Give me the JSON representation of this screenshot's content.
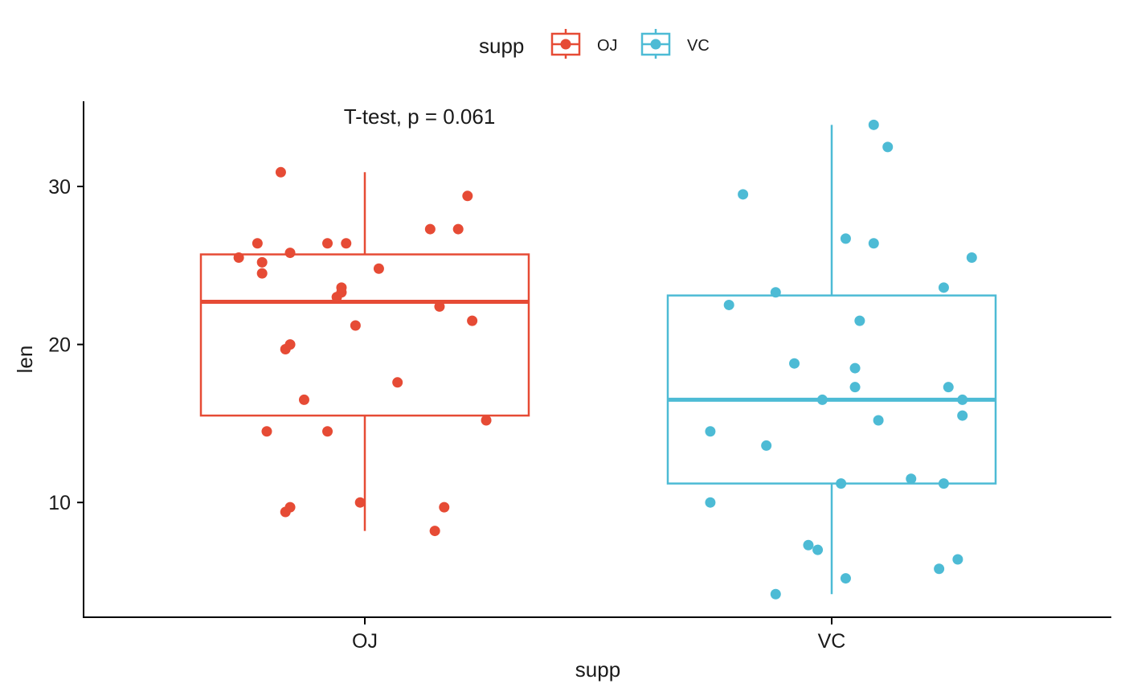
{
  "chart_data": {
    "type": "boxplot",
    "xlabel": "supp",
    "ylabel": "len",
    "categories": [
      "OJ",
      "VC"
    ],
    "ylim": [
      3,
      35
    ],
    "yticks": [
      10,
      20,
      30
    ],
    "legend": {
      "title": "supp",
      "position": "top",
      "entries": [
        "OJ",
        "VC"
      ]
    },
    "annotation": "T-test, p = 0.061",
    "grid": false,
    "series": [
      {
        "name": "OJ",
        "color": "#E64B35",
        "box": {
          "q1": 15.5,
          "median": 22.7,
          "q3": 25.7,
          "whisker_low": 8.2,
          "whisker_high": 30.9
        },
        "points": [
          {
            "x": 0.79,
            "y": 14.5
          },
          {
            "x": 0.92,
            "y": 14.5
          },
          {
            "x": 0.87,
            "y": 16.5
          },
          {
            "x": 0.83,
            "y": 19.7
          },
          {
            "x": 0.84,
            "y": 20.0
          },
          {
            "x": 1.07,
            "y": 17.6
          },
          {
            "x": 0.98,
            "y": 21.2
          },
          {
            "x": 1.16,
            "y": 22.4
          },
          {
            "x": 1.23,
            "y": 21.5
          },
          {
            "x": 0.94,
            "y": 23.0
          },
          {
            "x": 0.95,
            "y": 23.3
          },
          {
            "x": 0.95,
            "y": 23.6
          },
          {
            "x": 0.78,
            "y": 24.5
          },
          {
            "x": 0.78,
            "y": 25.2
          },
          {
            "x": 0.73,
            "y": 25.5
          },
          {
            "x": 0.84,
            "y": 25.8
          },
          {
            "x": 1.03,
            "y": 24.8
          },
          {
            "x": 0.77,
            "y": 26.4
          },
          {
            "x": 0.92,
            "y": 26.4
          },
          {
            "x": 0.96,
            "y": 26.4
          },
          {
            "x": 1.14,
            "y": 27.3
          },
          {
            "x": 1.2,
            "y": 27.3
          },
          {
            "x": 1.22,
            "y": 29.4
          },
          {
            "x": 0.82,
            "y": 30.9
          },
          {
            "x": 0.83,
            "y": 9.4
          },
          {
            "x": 0.84,
            "y": 9.7
          },
          {
            "x": 0.99,
            "y": 10.0
          },
          {
            "x": 1.17,
            "y": 9.7
          },
          {
            "x": 1.15,
            "y": 8.2
          },
          {
            "x": 1.26,
            "y": 15.2
          }
        ]
      },
      {
        "name": "VC",
        "color": "#4DBBD5",
        "box": {
          "q1": 11.2,
          "median": 16.5,
          "q3": 23.1,
          "whisker_low": 4.2,
          "whisker_high": 33.9
        },
        "points": [
          {
            "x": 2.09,
            "y": 33.9
          },
          {
            "x": 2.12,
            "y": 32.5
          },
          {
            "x": 1.81,
            "y": 29.5
          },
          {
            "x": 2.03,
            "y": 26.7
          },
          {
            "x": 2.09,
            "y": 26.4
          },
          {
            "x": 2.3,
            "y": 25.5
          },
          {
            "x": 1.88,
            "y": 23.3
          },
          {
            "x": 2.24,
            "y": 23.6
          },
          {
            "x": 1.78,
            "y": 22.5
          },
          {
            "x": 2.06,
            "y": 21.5
          },
          {
            "x": 1.92,
            "y": 18.8
          },
          {
            "x": 2.05,
            "y": 18.5
          },
          {
            "x": 2.05,
            "y": 17.3
          },
          {
            "x": 2.25,
            "y": 17.3
          },
          {
            "x": 1.98,
            "y": 16.5
          },
          {
            "x": 2.28,
            "y": 16.5
          },
          {
            "x": 2.1,
            "y": 15.2
          },
          {
            "x": 2.28,
            "y": 15.5
          },
          {
            "x": 1.74,
            "y": 14.5
          },
          {
            "x": 1.86,
            "y": 13.6
          },
          {
            "x": 2.17,
            "y": 11.5
          },
          {
            "x": 2.02,
            "y": 11.2
          },
          {
            "x": 2.24,
            "y": 11.2
          },
          {
            "x": 1.74,
            "y": 10.0
          },
          {
            "x": 1.95,
            "y": 7.3
          },
          {
            "x": 1.97,
            "y": 7.0
          },
          {
            "x": 2.27,
            "y": 6.4
          },
          {
            "x": 2.23,
            "y": 5.8
          },
          {
            "x": 2.03,
            "y": 5.2
          },
          {
            "x": 1.88,
            "y": 4.2
          }
        ]
      }
    ]
  }
}
